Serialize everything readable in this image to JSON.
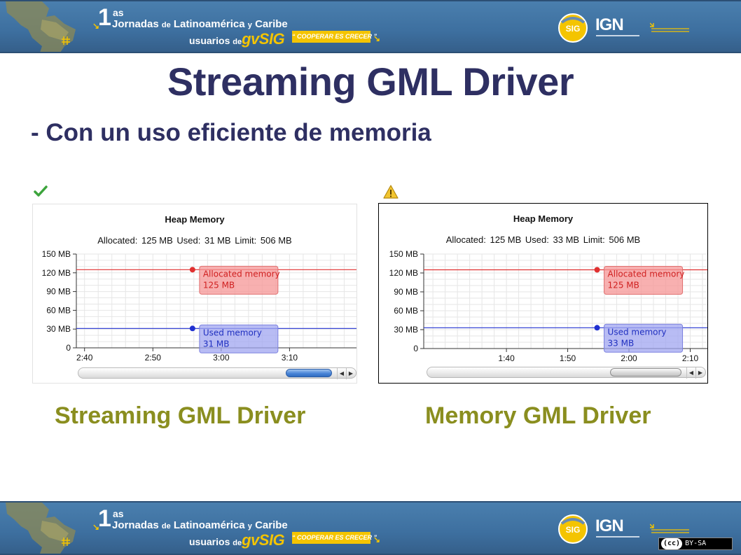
{
  "banner": {
    "ordinal": "1",
    "ordinal_suffix": "as",
    "line1_a": "Jornadas",
    "line1_b": "de",
    "line1_c": "Latinoamérica",
    "line1_d": "y",
    "line1_e": "Caribe",
    "line2_a": "usuarios",
    "line2_b": "de",
    "brand": "gvSIG",
    "slogan": "“ COOPERAR ES CRECER ”",
    "partner_logo": "IGN",
    "gvsig_logo_text": "SIG",
    "license": "BY-SA",
    "license_badge": "(cc)",
    "colors": {
      "banner_blue": "#3d6f9f",
      "accent_yellow": "#f4c400"
    }
  },
  "slide": {
    "title": "Streaming GML Driver",
    "subtitle": "- Con un uso eficiente de memoria"
  },
  "charts": {
    "left": {
      "status_icon": "check-icon",
      "heading": "Heap Memory",
      "stats": {
        "allocated_label": "Allocated:",
        "allocated_value": "125 MB",
        "used_label": "Used:",
        "used_value": "31 MB",
        "limit_label": "Limit:",
        "limit_value": "506 MB"
      },
      "caption": "Streaming GML Driver"
    },
    "right": {
      "status_icon": "warning-icon",
      "heading": "Heap Memory",
      "stats": {
        "allocated_label": "Allocated:",
        "allocated_value": "125 MB",
        "used_label": "Used:",
        "used_value": "33 MB",
        "limit_label": "Limit:",
        "limit_value": "506 MB"
      },
      "caption": "Memory GML Driver"
    }
  },
  "chart_data": [
    {
      "type": "line",
      "title": "Heap Memory",
      "y_ticks": [
        "0",
        "30 MB",
        "60 MB",
        "90 MB",
        "120 MB",
        "150 MB"
      ],
      "ylim": [
        0,
        150
      ],
      "x_ticks": [
        "2:40",
        "2:50",
        "3:00",
        "3:10"
      ],
      "x_tick_minutes": [
        160,
        170,
        180,
        190
      ],
      "xlim": [
        158.8,
        199.8
      ],
      "grid": true,
      "series": [
        {
          "name": "Allocated memory",
          "color": "#e03030",
          "value": 125,
          "label": "125 MB",
          "marker_minute": 175.8
        },
        {
          "name": "Used memory",
          "color": "#2030d0",
          "value": 31,
          "label": "31 MB",
          "marker_minute": 175.8
        }
      ]
    },
    {
      "type": "line",
      "title": "Heap Memory",
      "y_ticks": [
        "0",
        "30 MB",
        "60 MB",
        "90 MB",
        "120 MB",
        "150 MB"
      ],
      "ylim": [
        0,
        150
      ],
      "x_ticks": [
        "1:40",
        "1:50",
        "2:00",
        "2:10"
      ],
      "x_tick_minutes": [
        100,
        110,
        120,
        130
      ],
      "xlim": [
        86.5,
        132.8
      ],
      "grid": true,
      "series": [
        {
          "name": "Allocated memory",
          "color": "#e03030",
          "value": 125,
          "label": "125 MB",
          "marker_minute": 114.8
        },
        {
          "name": "Used memory",
          "color": "#2030d0",
          "value": 33,
          "label": "33 MB",
          "marker_minute": 114.8
        }
      ]
    }
  ]
}
